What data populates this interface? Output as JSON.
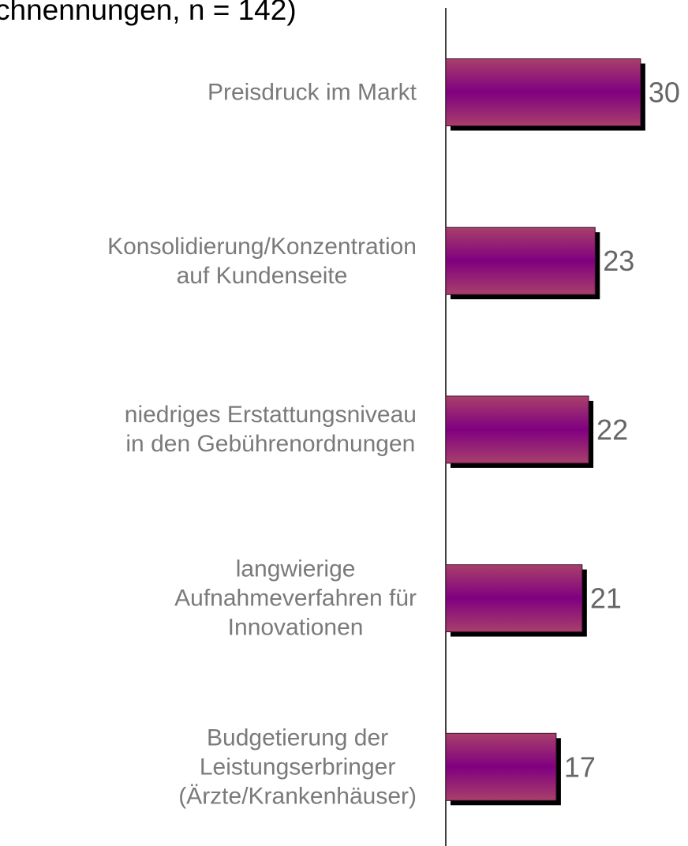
{
  "chart_data": {
    "type": "bar",
    "orientation": "horizontal",
    "title": "chnennungen, n = 142)",
    "categories": [
      "Preisdruck im Markt",
      "Konsolidierung/Konzentration\nauf Kundenseite",
      "niedriges Erstattungsniveau\nin den Gebührenordnungen",
      "langwierige\nAufnahmeverfahren für\nInnovationen",
      "Budgetierung der\nLeistungserbringer\n(Ärzte/Krankenhäuser)"
    ],
    "values": [
      30,
      23,
      22,
      21,
      17
    ],
    "color": "#800080"
  }
}
